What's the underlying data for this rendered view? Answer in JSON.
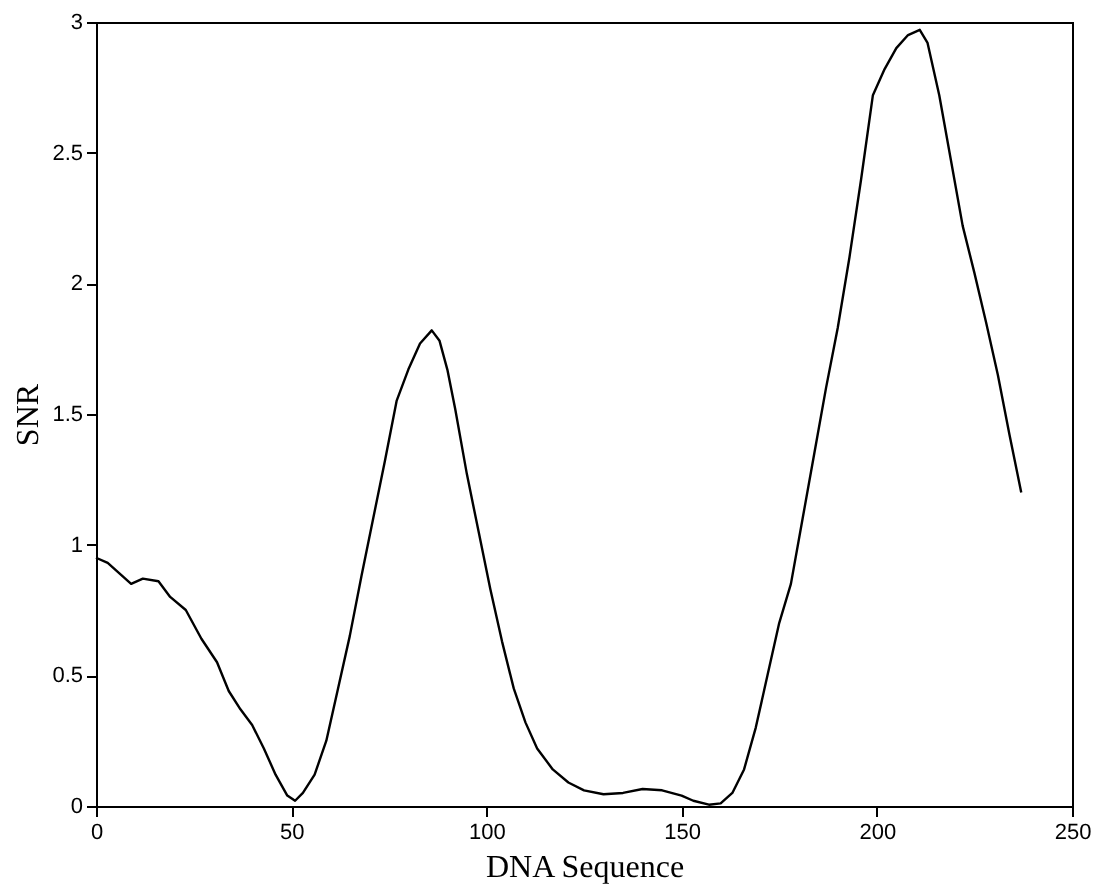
{
  "chart_data": {
    "type": "line",
    "xlabel": "DNA Sequence",
    "ylabel": "SNR",
    "xlim": [
      0,
      250
    ],
    "ylim": [
      0,
      3
    ],
    "xticks": [
      0,
      50,
      100,
      150,
      200,
      250
    ],
    "yticks": [
      0,
      0.5,
      1,
      1.5,
      2,
      2.5,
      3
    ],
    "grid": false,
    "marker": "none",
    "line_style": "solid",
    "series": [
      {
        "color": "#000000",
        "x": [
          0,
          3,
          6,
          9,
          12,
          16,
          19,
          23,
          27,
          31,
          34,
          37,
          40,
          43,
          46,
          49,
          51,
          53,
          56,
          59,
          62,
          65,
          68,
          71,
          74,
          77,
          80,
          83,
          86,
          88,
          90,
          92,
          95,
          98,
          101,
          104,
          107,
          110,
          113,
          117,
          121,
          125,
          130,
          135,
          140,
          145,
          150,
          153,
          157,
          160,
          163,
          166,
          169,
          172,
          175,
          178,
          181,
          184,
          187,
          190,
          193,
          196,
          199,
          202,
          205,
          208,
          211,
          213,
          216,
          219,
          222,
          225,
          228,
          231,
          234,
          237
        ],
        "values": [
          0.95,
          0.93,
          0.89,
          0.85,
          0.87,
          0.86,
          0.8,
          0.75,
          0.64,
          0.55,
          0.44,
          0.37,
          0.31,
          0.22,
          0.12,
          0.04,
          0.02,
          0.05,
          0.12,
          0.25,
          0.45,
          0.65,
          0.88,
          1.1,
          1.32,
          1.55,
          1.67,
          1.77,
          1.82,
          1.78,
          1.67,
          1.52,
          1.27,
          1.05,
          0.83,
          0.63,
          0.45,
          0.32,
          0.22,
          0.14,
          0.09,
          0.06,
          0.045,
          0.05,
          0.065,
          0.06,
          0.04,
          0.02,
          0.005,
          0.01,
          0.05,
          0.14,
          0.3,
          0.5,
          0.7,
          0.85,
          1.1,
          1.35,
          1.6,
          1.83,
          2.1,
          2.4,
          2.72,
          2.82,
          2.9,
          2.95,
          2.97,
          2.92,
          2.72,
          2.47,
          2.22,
          2.04,
          1.85,
          1.65,
          1.42,
          1.2
        ]
      }
    ]
  }
}
